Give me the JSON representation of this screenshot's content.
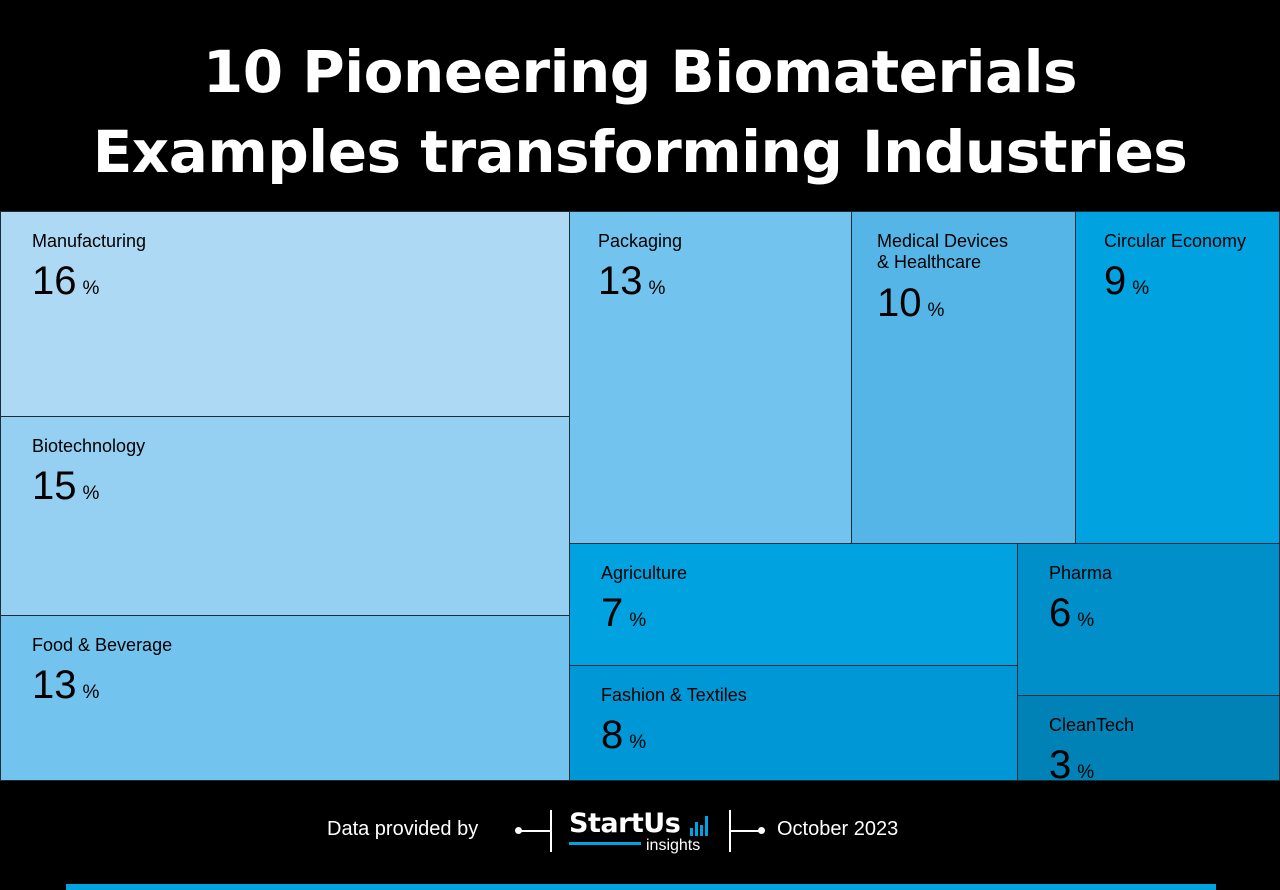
{
  "title": {
    "line1": "10 Pioneering Biomaterials",
    "line2": "Examples transforming Industries"
  },
  "chart_data": {
    "type": "treemap",
    "unit": "%",
    "items": [
      {
        "label": "Manufacturing",
        "value": 16,
        "color": "#aed9f5"
      },
      {
        "label": "Biotechnology",
        "value": 15,
        "color": "#95d0f2"
      },
      {
        "label": "Food & Beverage",
        "value": 13,
        "color": "#72c3ee"
      },
      {
        "label": "Packaging",
        "value": 13,
        "color": "#72c3ee"
      },
      {
        "label": "Medical Devices\n& Healthcare",
        "value": 10,
        "color": "#55b5e7"
      },
      {
        "label": "Circular Economy",
        "value": 9,
        "color": "#00a3e0"
      },
      {
        "label": "Agriculture",
        "value": 7,
        "color": "#00a3e0"
      },
      {
        "label": "Fashion & Textiles",
        "value": 8,
        "color": "#0097d6"
      },
      {
        "label": "Pharma",
        "value": 6,
        "color": "#008fc9"
      },
      {
        "label": "CleanTech",
        "value": 3,
        "color": "#0082b6"
      }
    ]
  },
  "footer": {
    "provided_by": "Data provided by",
    "brand": "StartUs",
    "brand_sub": "insights",
    "date": "October 2023"
  },
  "colors": {
    "accent": "#00a3e0",
    "background": "#000000"
  }
}
